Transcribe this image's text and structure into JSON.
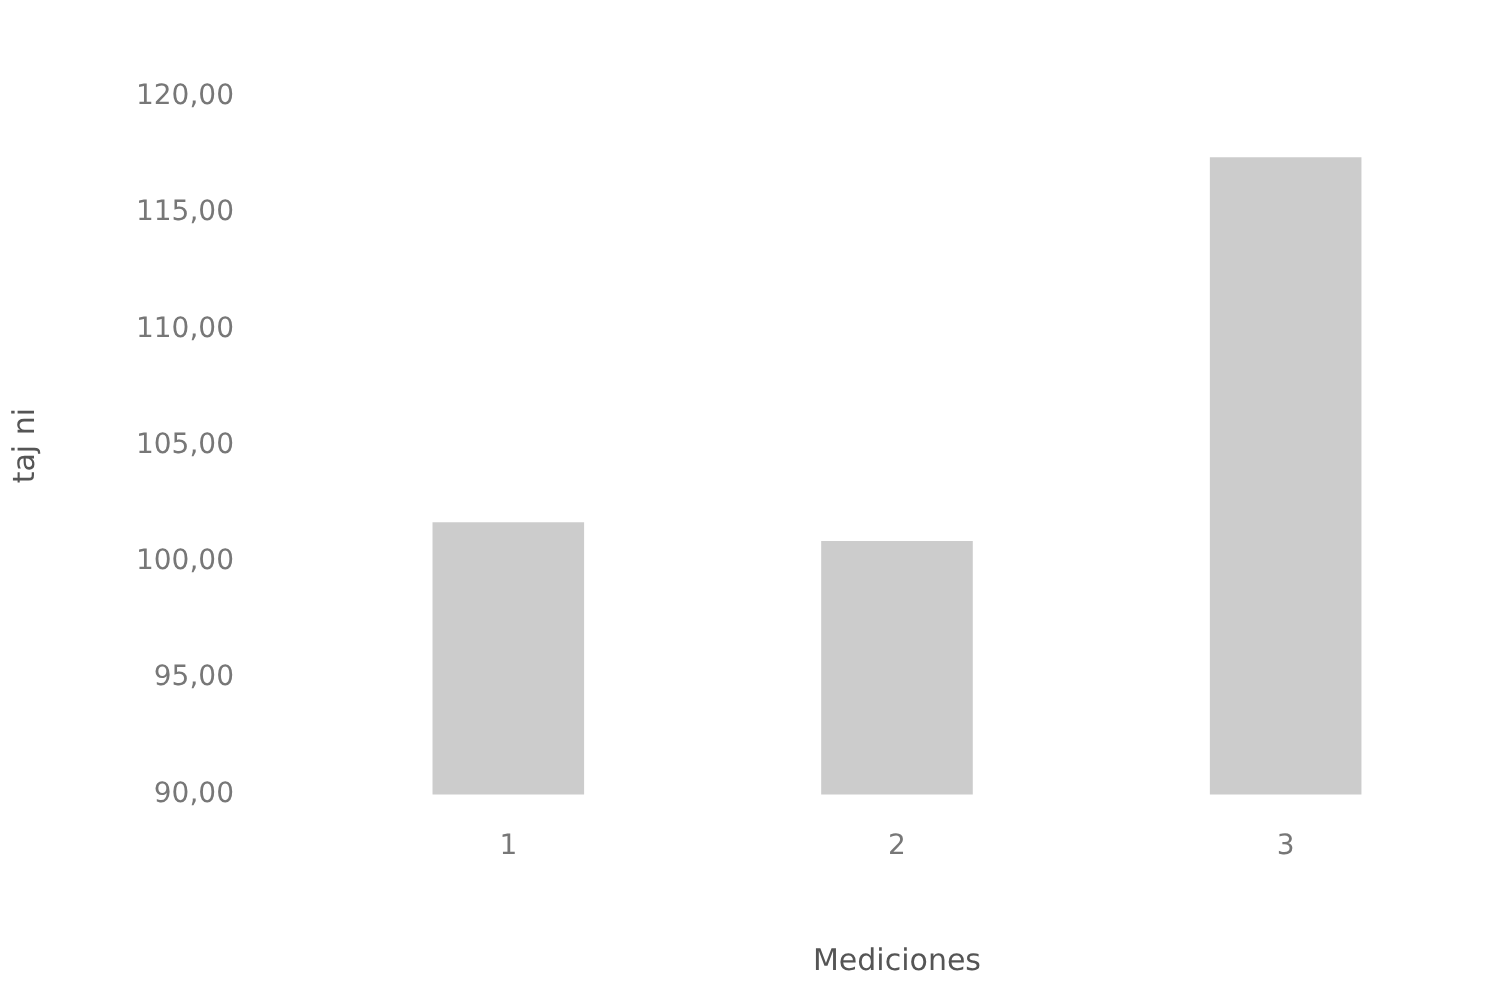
{
  "chart_data": {
    "type": "bar",
    "xlabel": "Mediciones",
    "ylabel": "taj ni",
    "categories": [
      "1",
      "2",
      "3"
    ],
    "values": [
      101.7,
      100.9,
      117.4
    ],
    "color": "#cccccc",
    "ylim": [
      90,
      120
    ],
    "yticks": [
      {
        "value": 90,
        "label": "90,00"
      },
      {
        "value": 95,
        "label": "95,00"
      },
      {
        "value": 100,
        "label": "100,00"
      },
      {
        "value": 105,
        "label": "105,00"
      },
      {
        "value": 110,
        "label": "110,00"
      },
      {
        "value": 115,
        "label": "115,00"
      },
      {
        "value": 120,
        "label": "120,00"
      }
    ],
    "grid": false,
    "legend": false
  }
}
